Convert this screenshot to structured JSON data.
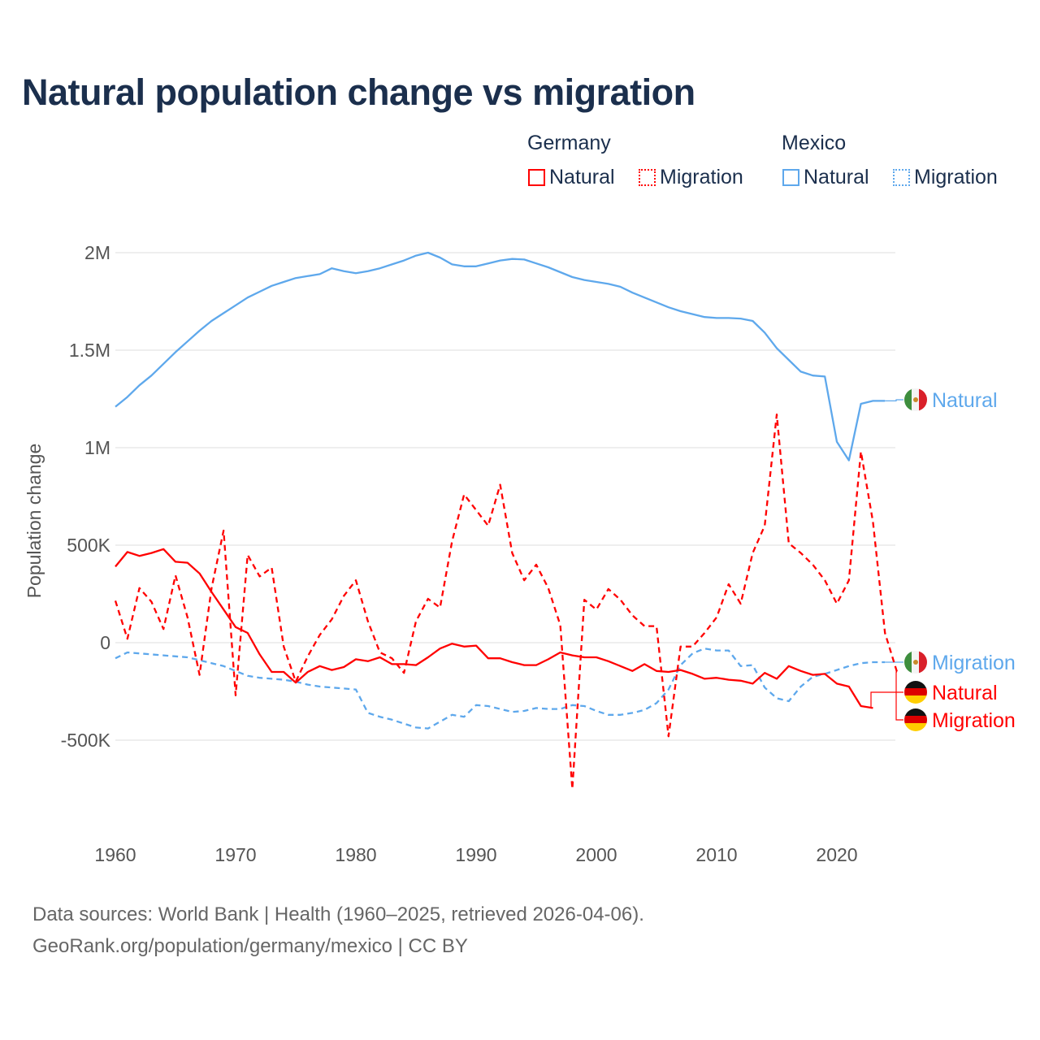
{
  "title": "Natural population change vs migration",
  "legend": {
    "groups": [
      {
        "name": "Germany",
        "items": [
          {
            "label": "Natural",
            "style": "solid"
          },
          {
            "label": "Migration",
            "style": "dotted"
          }
        ]
      },
      {
        "name": "Mexico",
        "items": [
          {
            "label": "Natural",
            "style": "solid"
          },
          {
            "label": "Migration",
            "style": "dotted"
          }
        ]
      }
    ]
  },
  "footer": {
    "line1": "Data sources: World Bank | Health (1960–2025, retrieved 2026-04-06).",
    "line2": "GeoRank.org/population/germany/mexico | CC BY"
  },
  "colors": {
    "germany": "#ff0000",
    "mexico": "#5ea8ec",
    "title": "#1b2f4d"
  },
  "chart_data": {
    "type": "line",
    "title": "Natural population change vs migration",
    "xlabel": "",
    "ylabel": "Population change",
    "xlim": [
      1960,
      2025
    ],
    "ylim": [
      -750000,
      2000000
    ],
    "xticks": [
      1960,
      1970,
      1980,
      1990,
      2000,
      2010,
      2020
    ],
    "xtick_labels": [
      "1960",
      "1970",
      "1980",
      "1990",
      "2000",
      "2010",
      "2020"
    ],
    "yticks": [
      -500000,
      0,
      500000,
      1000000,
      1500000,
      2000000
    ],
    "ytick_labels": [
      "-500K",
      "0",
      "500K",
      "1M",
      "1.5M",
      "2M"
    ],
    "grid": true,
    "series": [
      {
        "name": "Mexico Natural",
        "end_label": "Natural",
        "country": "mexico",
        "dashed": false,
        "start": 1960,
        "values_k": [
          1210,
          1260,
          1320,
          1370,
          1430,
          1490,
          1545,
          1600,
          1650,
          1690,
          1730,
          1770,
          1800,
          1830,
          1850,
          1870,
          1880,
          1890,
          1920,
          1905,
          1895,
          1905,
          1920,
          1940,
          1960,
          1985,
          2000,
          1975,
          1940,
          1930,
          1930,
          1945,
          1960,
          1968,
          1965,
          1945,
          1925,
          1900,
          1875,
          1860,
          1850,
          1840,
          1825,
          1795,
          1770,
          1745,
          1720,
          1700,
          1685,
          1670,
          1665,
          1665,
          1662,
          1650,
          1590,
          1510,
          1450,
          1390,
          1370,
          1365,
          1030,
          935,
          1225,
          1240,
          1240
        ]
      },
      {
        "name": "Mexico Migration",
        "end_label": "Migration",
        "country": "mexico",
        "dashed": true,
        "start": 1960,
        "values_k": [
          -80,
          -50,
          -55,
          -60,
          -65,
          -70,
          -75,
          -90,
          -105,
          -120,
          -145,
          -170,
          -180,
          -185,
          -190,
          -200,
          -215,
          -225,
          -230,
          -235,
          -240,
          -360,
          -380,
          -395,
          -415,
          -435,
          -440,
          -405,
          -370,
          -380,
          -320,
          -325,
          -340,
          -355,
          -350,
          -335,
          -340,
          -340,
          -320,
          -325,
          -350,
          -370,
          -370,
          -360,
          -345,
          -310,
          -240,
          -115,
          -55,
          -30,
          -40,
          -40,
          -120,
          -115,
          -230,
          -285,
          -300,
          -225,
          -175,
          -160,
          -140,
          -120,
          -105,
          -100,
          -100
        ]
      },
      {
        "name": "Germany Natural",
        "end_label": "Natural",
        "country": "germany",
        "dashed": false,
        "start": 1960,
        "values_k": [
          390,
          465,
          445,
          460,
          480,
          415,
          410,
          355,
          260,
          170,
          80,
          50,
          -60,
          -150,
          -150,
          -205,
          -150,
          -120,
          -140,
          -125,
          -85,
          -95,
          -75,
          -110,
          -110,
          -115,
          -75,
          -30,
          -5,
          -20,
          -15,
          -80,
          -80,
          -100,
          -115,
          -115,
          -85,
          -50,
          -65,
          -75,
          -75,
          -95,
          -120,
          -145,
          -110,
          -145,
          -150,
          -140,
          -160,
          -185,
          -180,
          -190,
          -195,
          -210,
          -155,
          -185,
          -120,
          -145,
          -165,
          -160,
          -210,
          -225,
          -325,
          -335
        ]
      },
      {
        "name": "Germany Migration",
        "end_label": "Migration",
        "country": "germany",
        "dashed": true,
        "start": 1960,
        "values_k": [
          215,
          20,
          280,
          210,
          70,
          345,
          130,
          -165,
          280,
          575,
          -270,
          450,
          340,
          385,
          -20,
          -200,
          -70,
          40,
          120,
          240,
          320,
          110,
          -50,
          -80,
          -155,
          110,
          225,
          180,
          520,
          760,
          680,
          600,
          810,
          460,
          320,
          400,
          280,
          90,
          -750,
          220,
          170,
          275,
          220,
          140,
          85,
          85,
          -480,
          -20,
          -20,
          50,
          130,
          300,
          200,
          460,
          600,
          1170,
          510,
          460,
          400,
          320,
          200,
          320,
          980,
          620,
          50,
          -150
        ]
      }
    ]
  }
}
